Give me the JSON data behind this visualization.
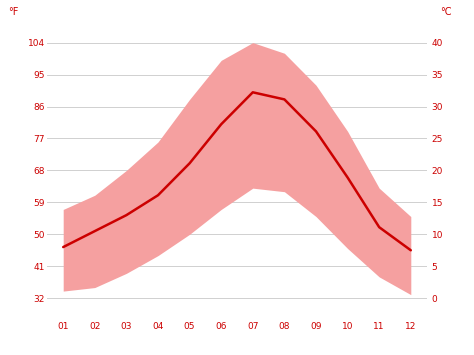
{
  "months": [
    1,
    2,
    3,
    4,
    5,
    6,
    7,
    8,
    9,
    10,
    11,
    12
  ],
  "month_labels": [
    "01",
    "02",
    "03",
    "04",
    "05",
    "06",
    "07",
    "08",
    "09",
    "10",
    "11",
    "12"
  ],
  "avg_temp_f": [
    46.4,
    50.9,
    55.4,
    61.0,
    70.0,
    81.0,
    90.0,
    88.0,
    79.0,
    66.0,
    52.0,
    45.5
  ],
  "max_temp_f": [
    57,
    61,
    68,
    76,
    88,
    99,
    104,
    101,
    92,
    79,
    63,
    55
  ],
  "min_temp_f": [
    34,
    35,
    39,
    44,
    50,
    57,
    63,
    62,
    55,
    46,
    38,
    33
  ],
  "band_color": "#f5a0a0",
  "line_color": "#cc0000",
  "background_color": "#ffffff",
  "grid_color": "#d0d0d0",
  "tick_color": "#cc0000",
  "yticks_f": [
    32,
    41,
    50,
    59,
    68,
    77,
    86,
    95,
    104
  ],
  "yticks_c": [
    0,
    5,
    10,
    15,
    20,
    25,
    30,
    35,
    40
  ],
  "ylim_f": [
    26,
    108
  ],
  "xlim": [
    0.5,
    12.5
  ],
  "figsize": [
    4.74,
    3.55
  ],
  "dpi": 100,
  "tick_fontsize": 6.5,
  "label_fontsize": 7
}
